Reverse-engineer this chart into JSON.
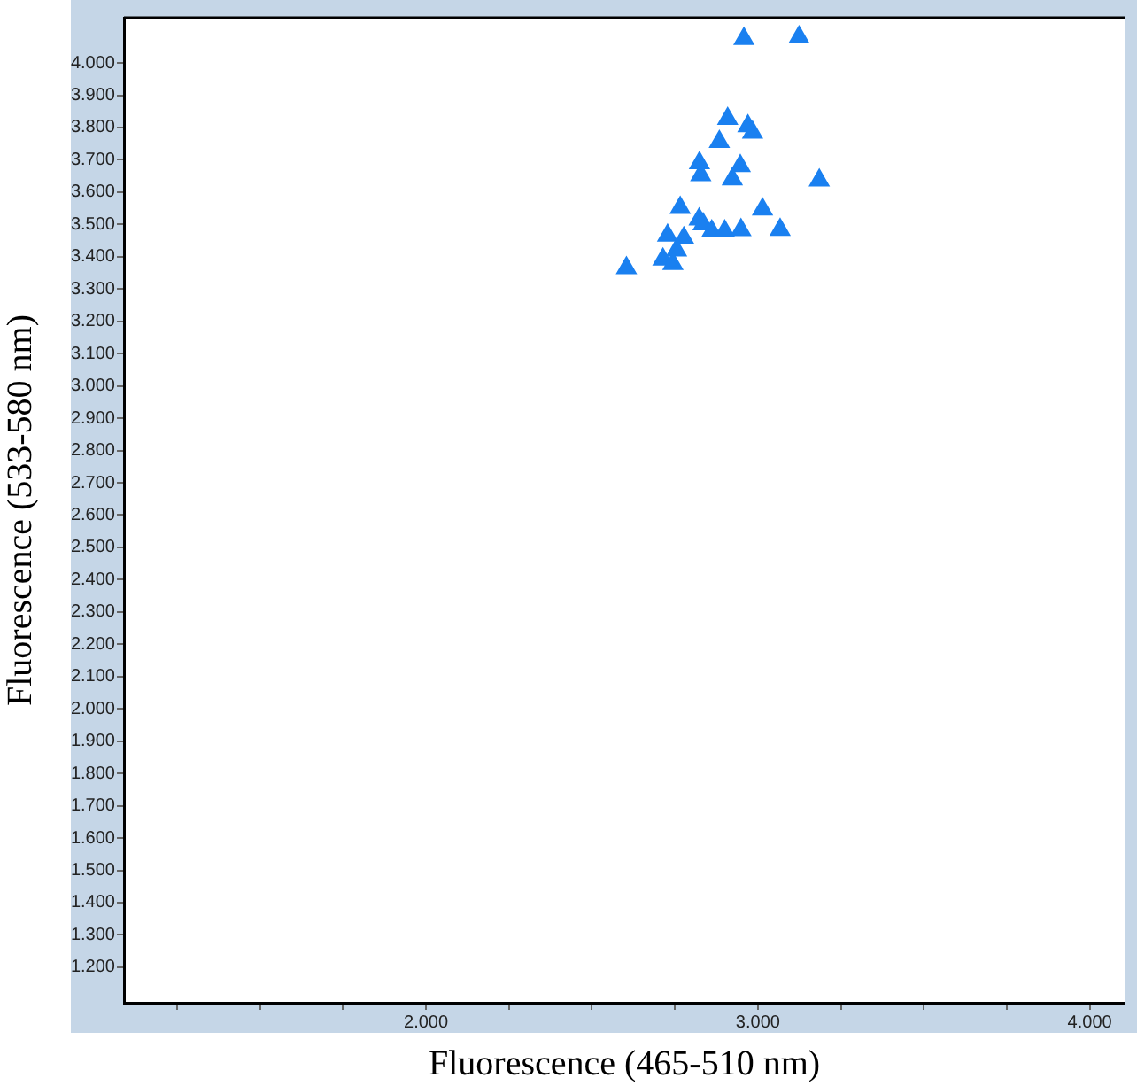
{
  "chart_data": {
    "type": "scatter",
    "xlabel": "Fluorescence (465-510 nm)",
    "ylabel": "Fluorescence (533-580 nm)",
    "series": [
      {
        "color": "#1a80f0",
        "marker": "triangle",
        "x": [
          2.958,
          3.124,
          2.909,
          2.97,
          2.984,
          2.884,
          2.824,
          2.947,
          2.828,
          2.923,
          3.185,
          2.766,
          3.014,
          2.823,
          2.835,
          2.861,
          2.9,
          2.949,
          3.067,
          2.728,
          2.777,
          2.755,
          2.714,
          2.744,
          2.604
        ],
        "values": [
          4.075,
          4.08,
          3.827,
          3.805,
          3.785,
          3.756,
          3.69,
          3.681,
          3.653,
          3.64,
          3.637,
          3.552,
          3.547,
          3.516,
          3.501,
          3.479,
          3.479,
          3.483,
          3.484,
          3.466,
          3.458,
          3.42,
          3.392,
          3.378,
          3.365
        ]
      }
    ],
    "xlim": [
      1.09,
      4.105
    ],
    "ylim": [
      1.09,
      4.14
    ],
    "xticks": [
      {
        "value": 1.25,
        "label": null
      },
      {
        "value": 1.5,
        "label": null
      },
      {
        "value": 1.75,
        "label": null
      },
      {
        "value": 2,
        "label": "2.000"
      },
      {
        "value": 2.25,
        "label": null
      },
      {
        "value": 2.5,
        "label": null
      },
      {
        "value": 2.75,
        "label": null
      },
      {
        "value": 3,
        "label": "3.000"
      },
      {
        "value": 3.25,
        "label": null
      },
      {
        "value": 3.5,
        "label": null
      },
      {
        "value": 3.75,
        "label": null
      },
      {
        "value": 4,
        "label": "4.000"
      }
    ],
    "yticks": [
      {
        "value": 1.2,
        "label": "1.200"
      },
      {
        "value": 1.3,
        "label": "1.300"
      },
      {
        "value": 1.4,
        "label": "1.400"
      },
      {
        "value": 1.5,
        "label": "1.500"
      },
      {
        "value": 1.6,
        "label": "1.600"
      },
      {
        "value": 1.7,
        "label": "1.700"
      },
      {
        "value": 1.8,
        "label": "1.800"
      },
      {
        "value": 1.9,
        "label": "1.900"
      },
      {
        "value": 2,
        "label": "2.000"
      },
      {
        "value": 2.1,
        "label": "2.100"
      },
      {
        "value": 2.2,
        "label": "2.200"
      },
      {
        "value": 2.3,
        "label": "2.300"
      },
      {
        "value": 2.4,
        "label": "2.400"
      },
      {
        "value": 2.5,
        "label": "2.500"
      },
      {
        "value": 2.6,
        "label": "2.600"
      },
      {
        "value": 2.7,
        "label": "2.700"
      },
      {
        "value": 2.8,
        "label": "2.800"
      },
      {
        "value": 2.9,
        "label": "2.900"
      },
      {
        "value": 3,
        "label": "3.000"
      },
      {
        "value": 3.1,
        "label": "3.100"
      },
      {
        "value": 3.2,
        "label": "3.200"
      },
      {
        "value": 3.3,
        "label": "3.300"
      },
      {
        "value": 3.4,
        "label": "3.400"
      },
      {
        "value": 3.5,
        "label": "3.500"
      },
      {
        "value": 3.6,
        "label": "3.600"
      },
      {
        "value": 3.7,
        "label": "3.700"
      },
      {
        "value": 3.8,
        "label": "3.800"
      },
      {
        "value": 3.9,
        "label": "3.900"
      },
      {
        "value": 4,
        "label": "4.000"
      }
    ],
    "grid": false,
    "legend": false
  }
}
